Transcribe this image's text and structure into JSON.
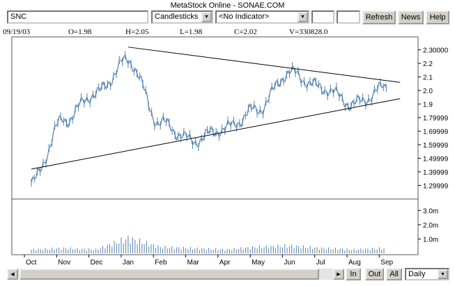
{
  "window_title": "MetaStock Online - SONAE.COM",
  "toolbar": {
    "symbol_value": "SNC",
    "chart_style": "Candlesticks",
    "indicator": "<No Indicator>",
    "field_a": "",
    "field_b": "",
    "refresh_label": "Refresh",
    "news_label": "News",
    "help_label": "Help"
  },
  "quote": {
    "date": "09/19/03",
    "open": "O=1.98",
    "high": "H=2.05",
    "low": "L=1.98",
    "close": "C=2.02",
    "volume": "V=330828.0"
  },
  "price_axis": [
    "2.30000",
    "2.2",
    "2.1",
    "2.0",
    "1.9",
    "1.79999",
    "1.69999",
    "1.59999",
    "1.49999",
    "1.39999",
    "1.29999"
  ],
  "volume_axis": [
    "3.0m",
    "2.0m",
    "1.0m"
  ],
  "months": [
    "Oct",
    "Nov",
    "Dec",
    "Jan",
    "Feb",
    "Mar",
    "Apr",
    "May",
    "Jun",
    "Jul",
    "Aug",
    "Sep"
  ],
  "footer": {
    "in_label": "In",
    "out_label": "Out",
    "all_label": "All",
    "period": "Daily"
  },
  "colors": {
    "price_line": "#4f7fb0",
    "volume_bar": "#4f7fb0",
    "trendline": "#000000"
  },
  "chart_data": {
    "type": "line",
    "title": "",
    "x": [
      "Oct",
      "Nov",
      "Dec",
      "Jan",
      "Feb",
      "Mar",
      "Apr",
      "May",
      "Jun",
      "Jul",
      "Aug",
      "Sep"
    ],
    "series": [
      {
        "values": [
          1.32,
          1.78,
          1.98,
          2.22,
          1.76,
          1.63,
          1.72,
          1.86,
          2.13,
          2.02,
          1.9,
          2.02
        ]
      }
    ],
    "volume_m": [
      0.3,
      0.4,
      0.3,
      1.2,
      0.5,
      0.4,
      0.3,
      0.5,
      0.6,
      0.4,
      0.3,
      0.4
    ],
    "ylim": [
      1.22,
      2.38
    ],
    "volume_ylim": [
      0,
      3.6
    ],
    "trendlines": [
      {
        "from": [
          "Oct",
          1.42
        ],
        "to": [
          "Sep",
          1.94
        ]
      },
      {
        "from": [
          "Jan",
          2.32
        ],
        "to": [
          "Sep",
          2.06
        ]
      }
    ],
    "grid": false,
    "legend": "none"
  }
}
